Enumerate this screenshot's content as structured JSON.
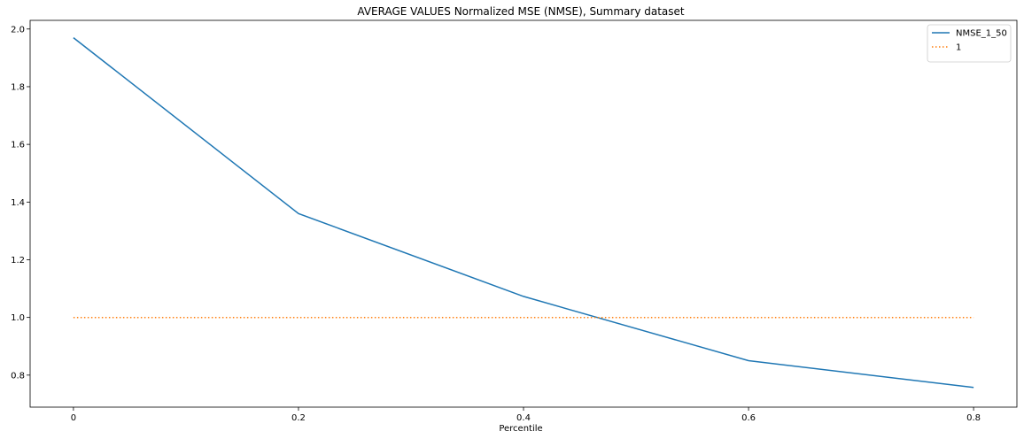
{
  "chart_data": {
    "type": "line",
    "title": "AVERAGE VALUES Normalized MSE (NMSE), Summary dataset",
    "xlabel": "Percentile",
    "ylabel": "",
    "x": [
      0,
      0.2,
      0.4,
      0.6,
      0.8
    ],
    "xticks": [
      "0",
      "0.2",
      "0.4",
      "0.6",
      "0.8"
    ],
    "yticks": [
      "0.8",
      "1.0",
      "1.2",
      "1.4",
      "1.6",
      "1.8",
      "2.0"
    ],
    "xlim": [
      -0.0385,
      0.8385
    ],
    "ylim": [
      0.689,
      2.03
    ],
    "grid": false,
    "legend_position": "top-right",
    "series": [
      {
        "name": "NMSE_1_50",
        "values": [
          1.97,
          1.36,
          1.073,
          0.85,
          0.757
        ],
        "color": "#1f77b4",
        "style": "solid"
      },
      {
        "name": "1",
        "values": [
          1,
          1,
          1,
          1,
          1
        ],
        "color": "#ff7f0e",
        "style": "dotted"
      }
    ]
  }
}
